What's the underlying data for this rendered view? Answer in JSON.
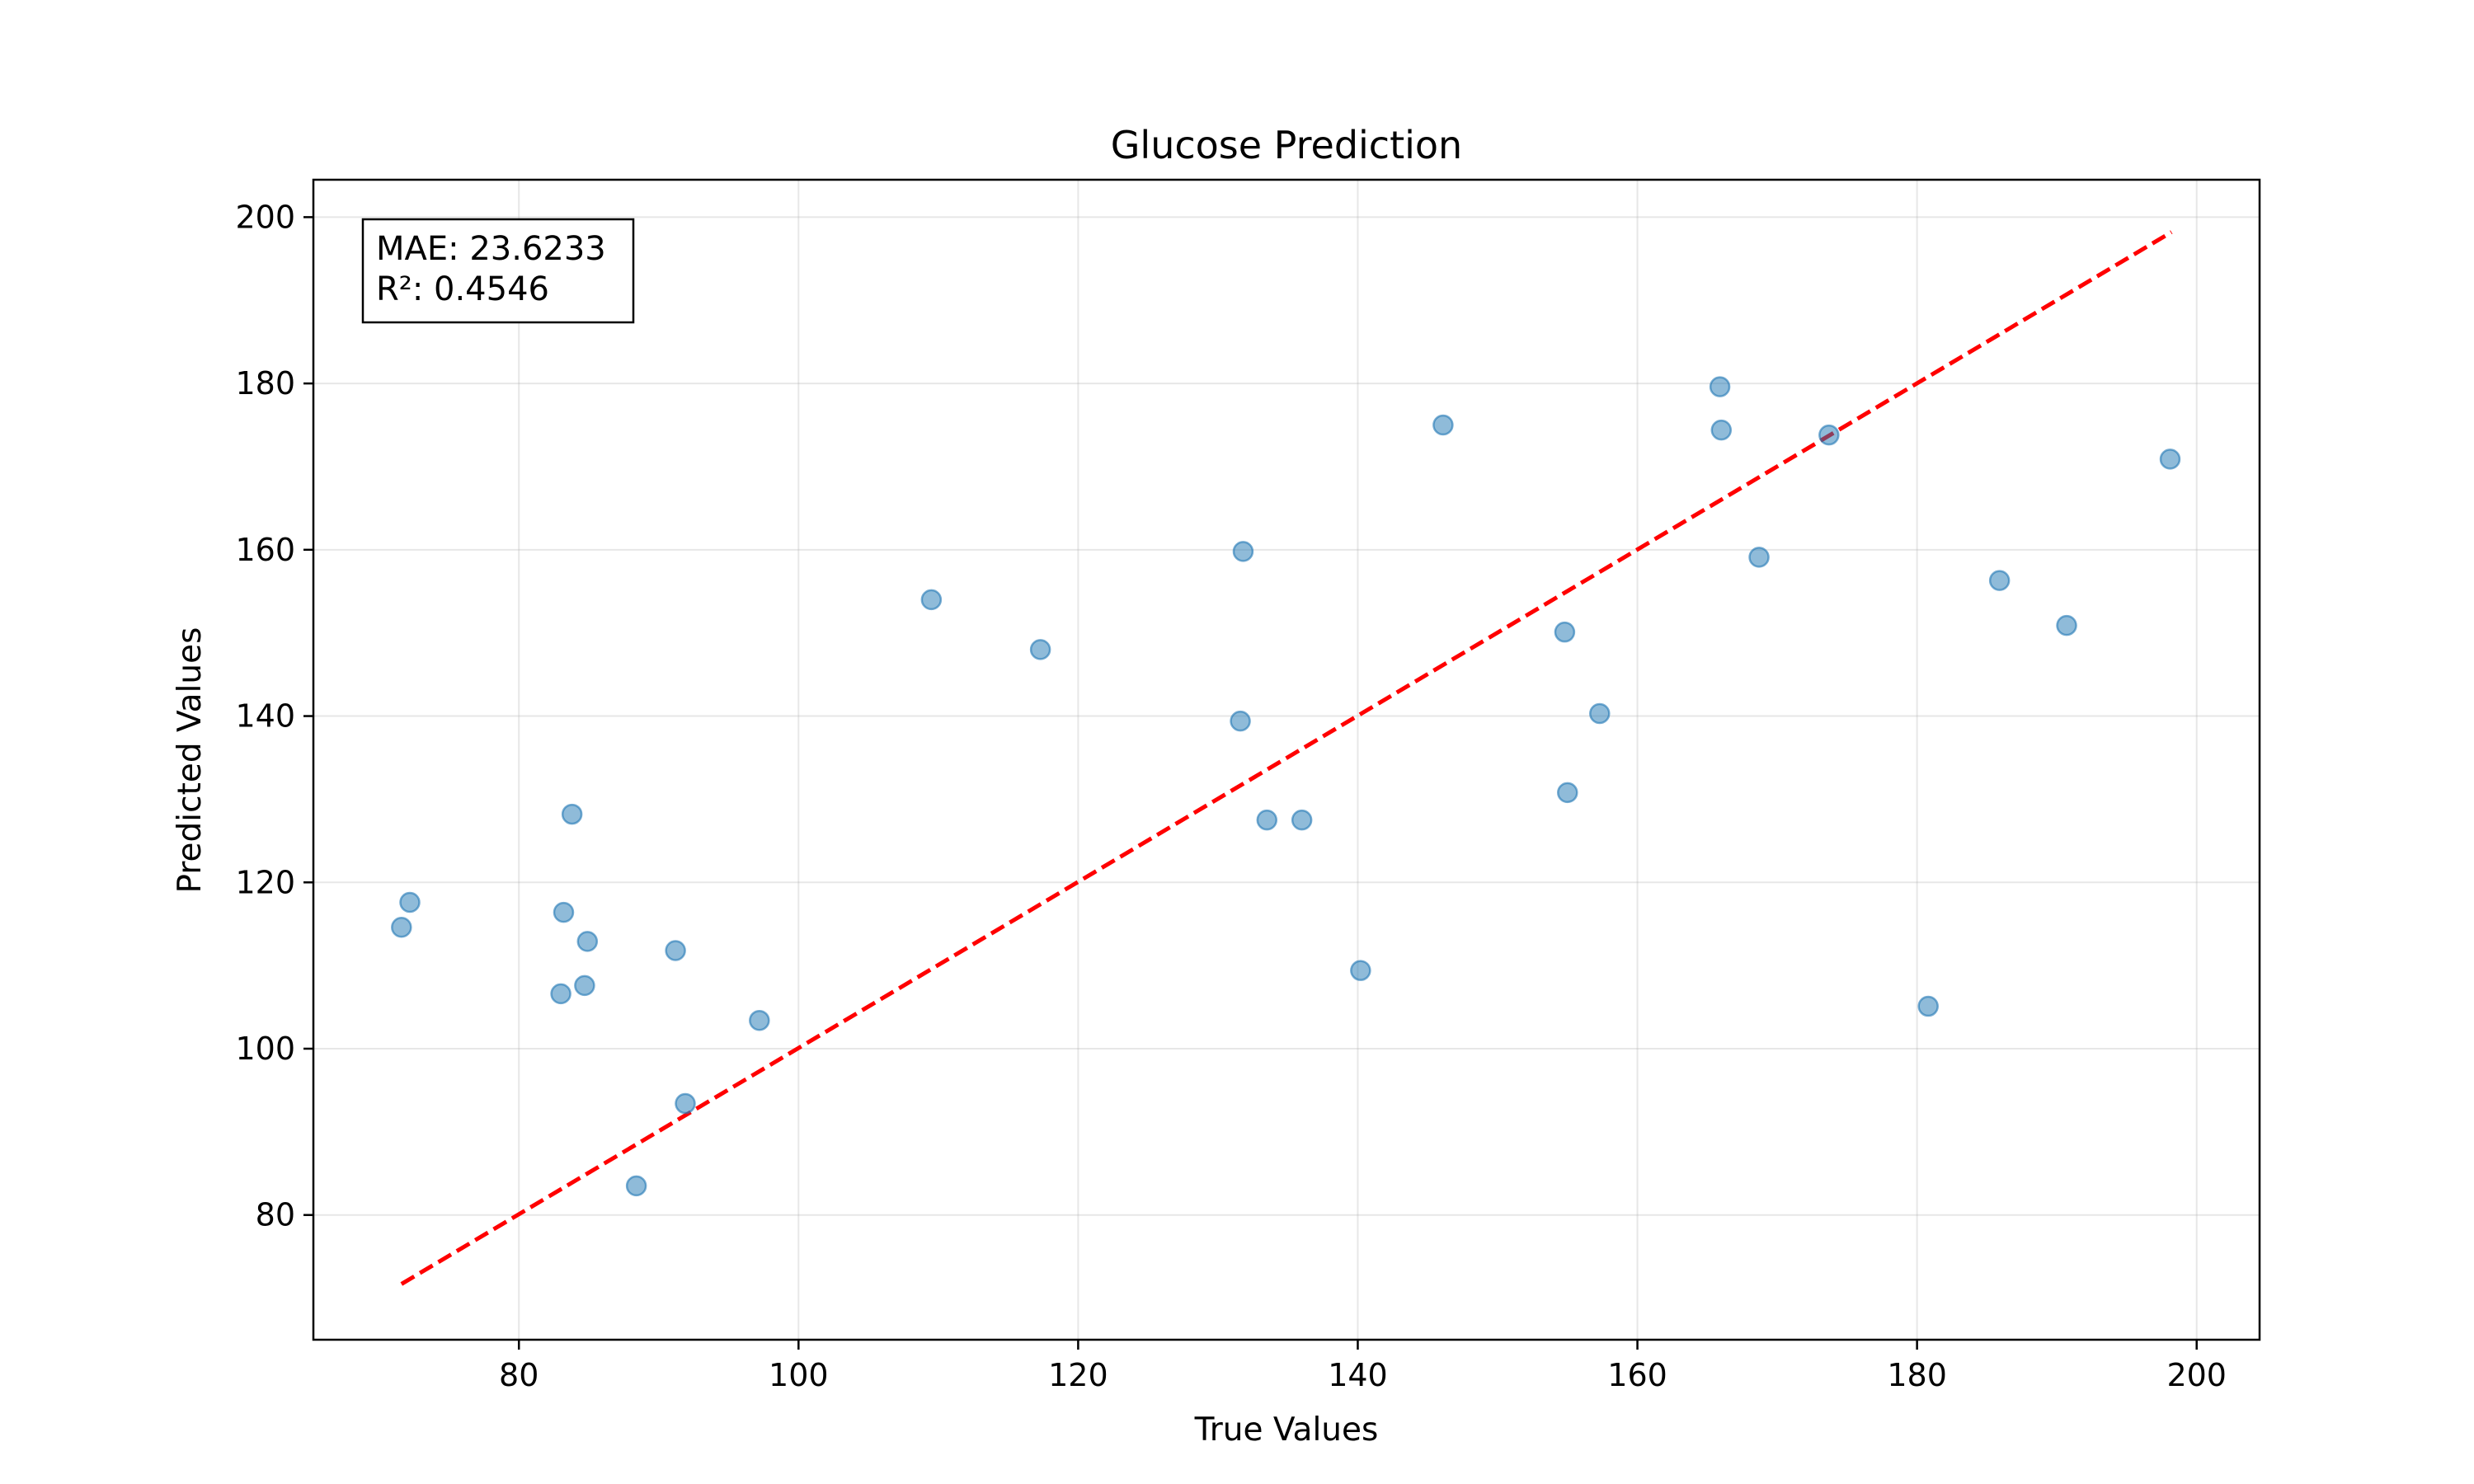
{
  "chart_data": {
    "type": "scatter",
    "title": "Glucose Prediction",
    "xlabel": "True Values",
    "ylabel": "Predicted Values",
    "xlim": [
      65.3,
      204.5
    ],
    "ylim": [
      65,
      204.5
    ],
    "xticks": [
      80,
      100,
      120,
      140,
      160,
      180,
      200
    ],
    "yticks": [
      80,
      100,
      120,
      140,
      160,
      180,
      200
    ],
    "grid": true,
    "annotation": {
      "mae_text": "MAE: 23.6233",
      "r2_text": "R²: 0.4546",
      "position": "top-left"
    },
    "reference_line": {
      "style": "dashed",
      "color": "#ff0000",
      "from": [
        71.6,
        71.7
      ],
      "to": [
        198.2,
        198.2
      ]
    },
    "point_color": "#1f77b4",
    "points": [
      {
        "x": 71.6,
        "y": 114.6
      },
      {
        "x": 72.2,
        "y": 117.6
      },
      {
        "x": 83.0,
        "y": 106.6
      },
      {
        "x": 83.2,
        "y": 116.4
      },
      {
        "x": 83.8,
        "y": 128.2
      },
      {
        "x": 84.7,
        "y": 107.6
      },
      {
        "x": 84.9,
        "y": 112.9
      },
      {
        "x": 88.4,
        "y": 83.5
      },
      {
        "x": 91.2,
        "y": 111.8
      },
      {
        "x": 91.9,
        "y": 93.4
      },
      {
        "x": 97.2,
        "y": 103.4
      },
      {
        "x": 109.5,
        "y": 154.0
      },
      {
        "x": 117.3,
        "y": 148.0
      },
      {
        "x": 131.6,
        "y": 139.4
      },
      {
        "x": 131.8,
        "y": 159.8
      },
      {
        "x": 133.5,
        "y": 127.5
      },
      {
        "x": 136.0,
        "y": 127.5
      },
      {
        "x": 140.2,
        "y": 109.4
      },
      {
        "x": 146.1,
        "y": 175.0
      },
      {
        "x": 154.8,
        "y": 150.1
      },
      {
        "x": 155.0,
        "y": 130.8
      },
      {
        "x": 157.3,
        "y": 140.3
      },
      {
        "x": 165.9,
        "y": 179.6
      },
      {
        "x": 166.0,
        "y": 174.4
      },
      {
        "x": 168.7,
        "y": 159.1
      },
      {
        "x": 173.7,
        "y": 173.8
      },
      {
        "x": 180.8,
        "y": 105.1
      },
      {
        "x": 185.9,
        "y": 156.3
      },
      {
        "x": 190.7,
        "y": 150.9
      },
      {
        "x": 198.1,
        "y": 170.9
      }
    ]
  }
}
